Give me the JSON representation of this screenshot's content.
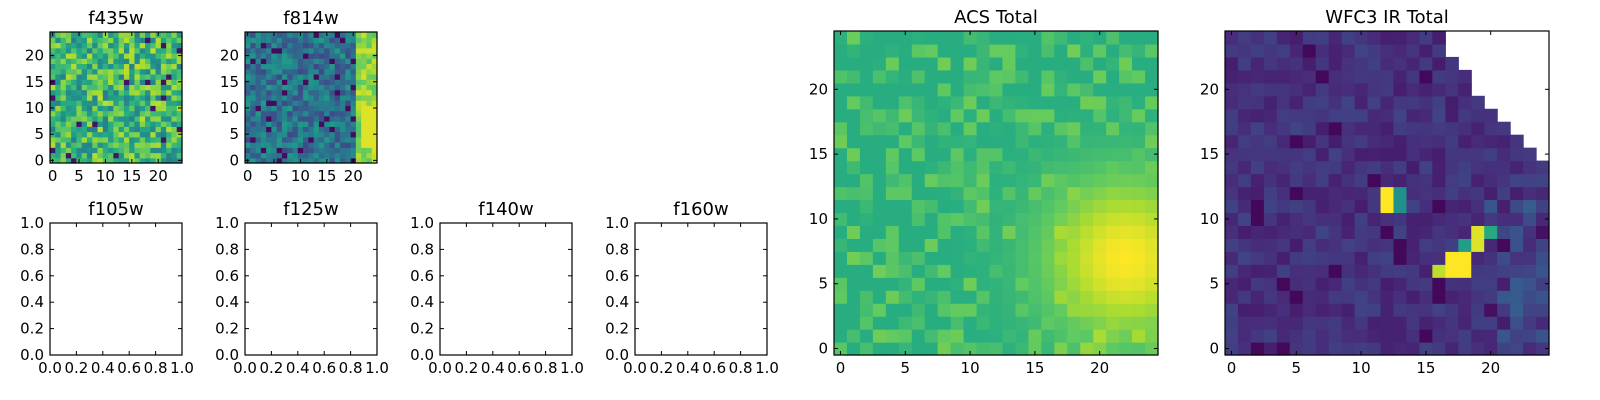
{
  "chart_data": [
    {
      "type": "heatmap",
      "title": "f435w",
      "x": {
        "range": [
          -0.5,
          24.5
        ],
        "ticks": [
          0,
          5,
          10,
          15,
          20
        ]
      },
      "y": {
        "range": [
          -0.5,
          24.5
        ],
        "ticks": [
          0,
          5,
          10,
          15,
          20
        ]
      },
      "grid": false,
      "colormap": "viridis",
      "empty": false
    },
    {
      "type": "heatmap",
      "title": "f814w",
      "x": {
        "range": [
          -0.5,
          24.5
        ],
        "ticks": [
          0,
          5,
          10,
          15,
          20
        ]
      },
      "y": {
        "range": [
          -0.5,
          24.5
        ],
        "ticks": [
          0,
          5,
          10,
          15,
          20
        ]
      },
      "grid": false,
      "colormap": "viridis",
      "empty": false
    },
    {
      "type": "heatmap",
      "title": "f105w",
      "x": {
        "range": [
          0,
          1
        ],
        "ticks": [
          "0.0",
          "0.2",
          "0.4",
          "0.6",
          "0.8",
          "1.0"
        ]
      },
      "y": {
        "range": [
          0,
          1
        ],
        "ticks": [
          "0.0",
          "0.2",
          "0.4",
          "0.6",
          "0.8",
          "1.0"
        ]
      },
      "grid": false,
      "empty": true
    },
    {
      "type": "heatmap",
      "title": "f125w",
      "x": {
        "range": [
          0,
          1
        ],
        "ticks": [
          "0.0",
          "0.2",
          "0.4",
          "0.6",
          "0.8",
          "1.0"
        ]
      },
      "y": {
        "range": [
          0,
          1
        ],
        "ticks": [
          "0.0",
          "0.2",
          "0.4",
          "0.6",
          "0.8",
          "1.0"
        ]
      },
      "grid": false,
      "empty": true
    },
    {
      "type": "heatmap",
      "title": "f140w",
      "x": {
        "range": [
          0,
          1
        ],
        "ticks": [
          "0.0",
          "0.2",
          "0.4",
          "0.6",
          "0.8",
          "1.0"
        ]
      },
      "y": {
        "range": [
          0,
          1
        ],
        "ticks": [
          "0.0",
          "0.2",
          "0.4",
          "0.6",
          "0.8",
          "1.0"
        ]
      },
      "grid": false,
      "empty": true
    },
    {
      "type": "heatmap",
      "title": "f160w",
      "x": {
        "range": [
          0,
          1
        ],
        "ticks": [
          "0.0",
          "0.2",
          "0.4",
          "0.6",
          "0.8",
          "1.0"
        ]
      },
      "y": {
        "range": [
          0,
          1
        ],
        "ticks": [
          "0.0",
          "0.2",
          "0.4",
          "0.6",
          "0.8",
          "1.0"
        ]
      },
      "grid": false,
      "empty": true
    },
    {
      "type": "heatmap",
      "title": "ACS Total",
      "x": {
        "range": [
          -0.5,
          24.5
        ],
        "ticks": [
          0,
          5,
          10,
          15,
          20
        ]
      },
      "y": {
        "range": [
          -0.5,
          24.5
        ],
        "ticks": [
          0,
          5,
          10,
          15,
          20
        ]
      },
      "grid": false,
      "colormap": "viridis",
      "empty": false,
      "bright_region": "lower-right"
    },
    {
      "type": "heatmap",
      "title": "WFC3 IR Total",
      "x": {
        "range": [
          -0.5,
          24.5
        ],
        "ticks": [
          0,
          5,
          10,
          15,
          20
        ]
      },
      "y": {
        "range": [
          -0.5,
          24.5
        ],
        "ticks": [
          0,
          5,
          10,
          15,
          20
        ]
      },
      "grid": false,
      "colormap": "viridis",
      "empty": false,
      "bright_sources": [
        {
          "x": 12,
          "y": 11.5
        },
        {
          "x": 17.5,
          "y": 7
        }
      ],
      "masked_region": "upper-right"
    }
  ],
  "colors": {
    "axis": "#000000",
    "background": "#ffffff",
    "viridis": [
      "#440154",
      "#472d7b",
      "#3b528b",
      "#2c728e",
      "#21918c",
      "#28ae80",
      "#5ec962",
      "#addc30",
      "#fde725"
    ]
  }
}
